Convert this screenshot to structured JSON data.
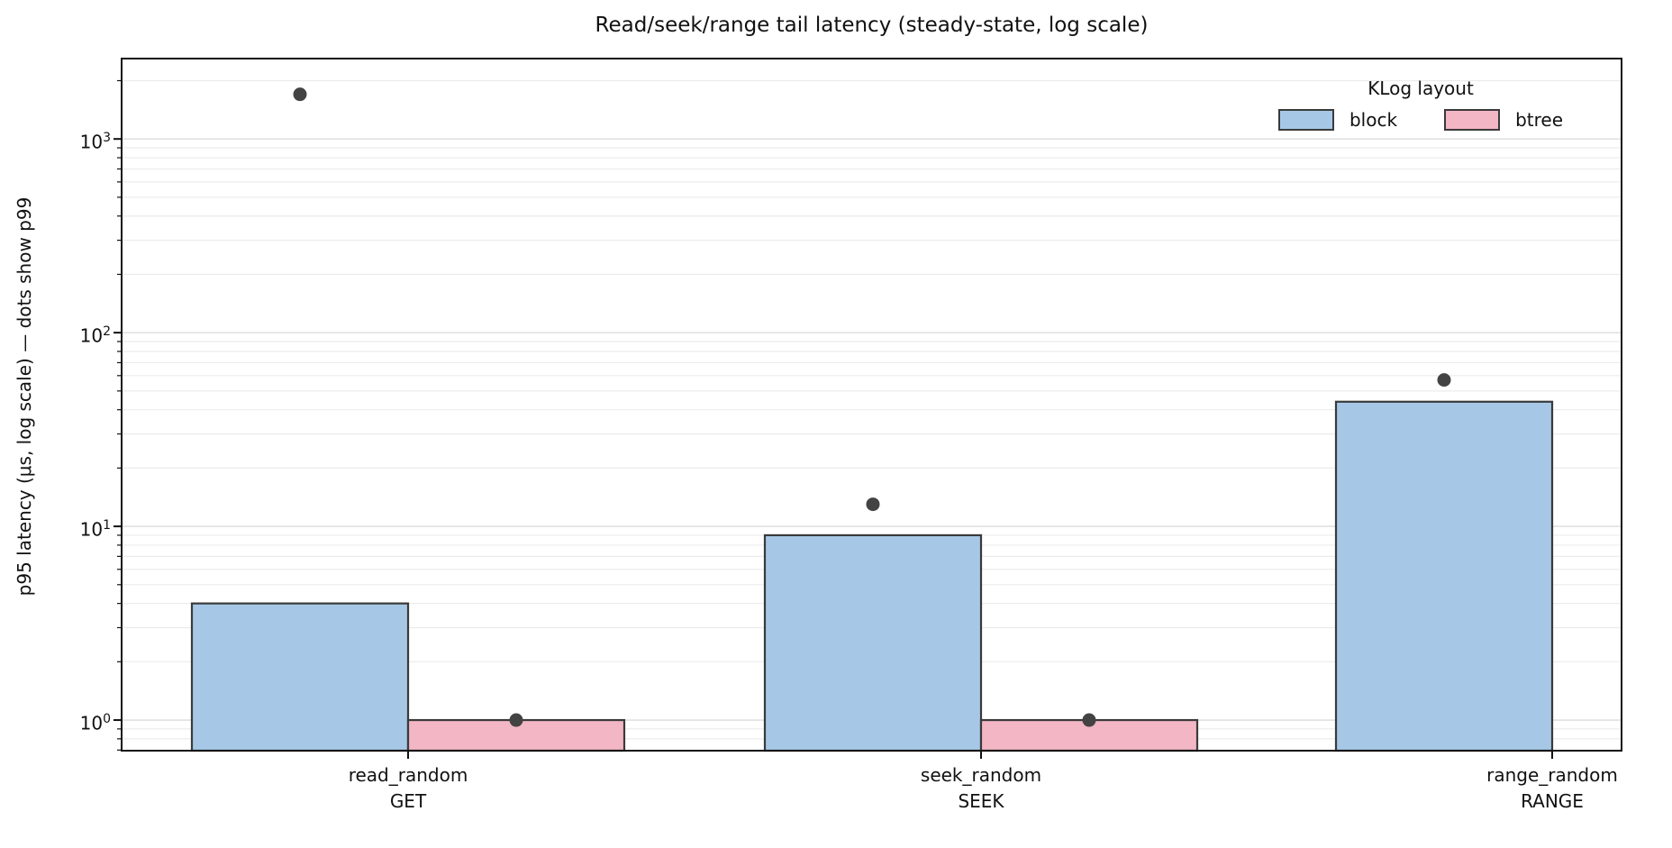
{
  "figure": {
    "title": "Read/seek/range tail latency (steady-state, log scale)",
    "ylabel": "p95 latency (μs, log scale) — dots show p99"
  },
  "legend": {
    "title": "KLog layout",
    "entries": [
      {
        "label": "block",
        "color": "#a6c8e6"
      },
      {
        "label": "btree",
        "color": "#f2b6c4"
      }
    ]
  },
  "chart_data": {
    "type": "bar",
    "scale_y": "log",
    "title": "Read/seek/range tail latency (steady-state, log scale)",
    "xlabel": "",
    "ylabel": "p95 latency (μs, log scale) — dots show p99",
    "categories": [
      {
        "workload": "read_random",
        "op": "GET"
      },
      {
        "workload": "seek_random",
        "op": "SEEK"
      },
      {
        "workload": "range_random",
        "op": "RANGE"
      }
    ],
    "series": [
      {
        "name": "block",
        "metric": "p95_latency_us",
        "color": "#a6c8e6",
        "values": [
          4.0,
          9.0,
          44.0
        ]
      },
      {
        "name": "btree",
        "metric": "p95_latency_us",
        "color": "#f2b6c4",
        "values": [
          1.0,
          1.0,
          null
        ]
      }
    ],
    "dots": [
      {
        "name": "block",
        "metric": "p99_latency_us",
        "values": [
          1700,
          13,
          57
        ]
      },
      {
        "name": "btree",
        "metric": "p99_latency_us",
        "values": [
          1.0,
          1.0,
          null
        ]
      }
    ],
    "dot_color": "#434343",
    "bar_edge_color": "#3a3a3a",
    "y_ticks": [
      {
        "label_base": "10",
        "label_exp": "0",
        "value": 1
      },
      {
        "label_base": "10",
        "label_exp": "1",
        "value": 10
      },
      {
        "label_base": "10",
        "label_exp": "2",
        "value": 100
      },
      {
        "label_base": "10",
        "label_exp": "3",
        "value": 1000
      }
    ],
    "ylim": [
      0.695,
      2600
    ],
    "grid": "horizontal, log major+minor",
    "legend_title": "KLog layout",
    "legend_position": "upper right"
  }
}
